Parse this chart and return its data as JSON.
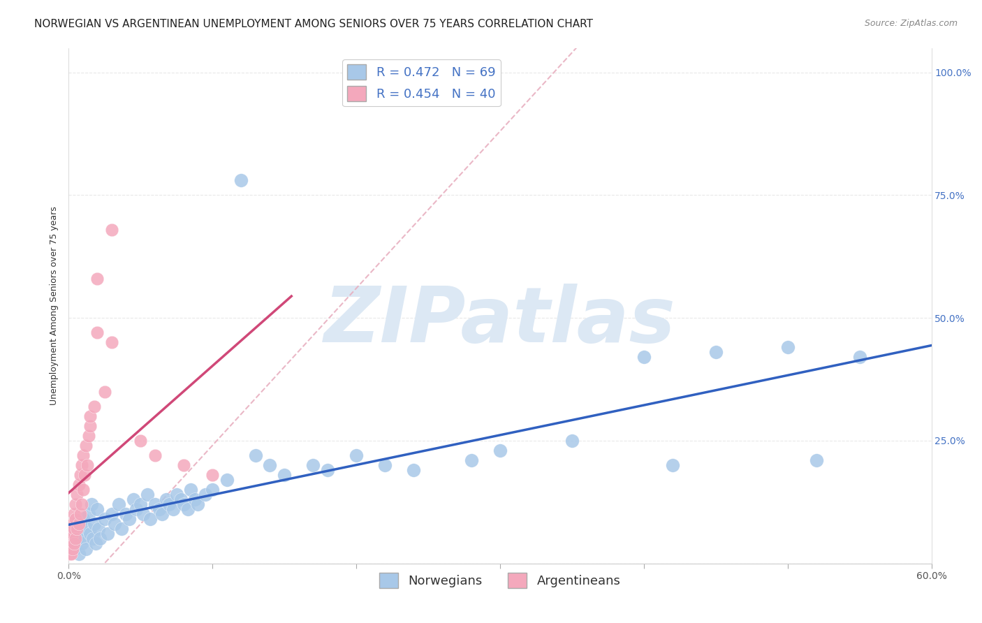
{
  "title": "NORWEGIAN VS ARGENTINEAN UNEMPLOYMENT AMONG SENIORS OVER 75 YEARS CORRELATION CHART",
  "source": "Source: ZipAtlas.com",
  "ylabel": "Unemployment Among Seniors over 75 years",
  "xlim": [
    0.0,
    0.6
  ],
  "ylim": [
    0.0,
    1.05
  ],
  "xticks": [
    0.0,
    0.1,
    0.2,
    0.3,
    0.4,
    0.5,
    0.6
  ],
  "xticklabels": [
    "0.0%",
    "",
    "",
    "",
    "",
    "",
    "60.0%"
  ],
  "yticks": [
    0.0,
    0.25,
    0.5,
    0.75,
    1.0
  ],
  "yticklabels": [
    "",
    "25.0%",
    "50.0%",
    "75.0%",
    "100.0%"
  ],
  "norwegian_color": "#a8c8e8",
  "argentinean_color": "#f4a8bc",
  "norwegian_line_color": "#3060c0",
  "argentinean_line_color": "#d04878",
  "diag_color": "#e8b0c0",
  "R_norwegian": 0.472,
  "N_norwegian": 69,
  "R_argentinean": 0.454,
  "N_argentinean": 40,
  "background_color": "#ffffff",
  "grid_color": "#e8e8e8",
  "watermark_text": "ZIPatlas",
  "watermark_color": "#dce8f4",
  "title_fontsize": 11,
  "label_fontsize": 9,
  "tick_fontsize": 10,
  "legend_fontsize": 13
}
